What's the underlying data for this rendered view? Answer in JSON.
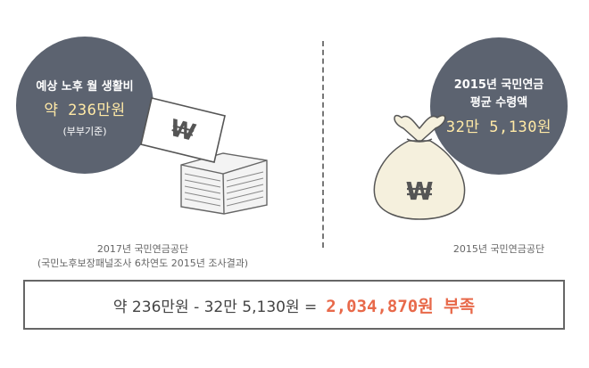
{
  "left": {
    "line1": "예상 노후 월 생활비",
    "amount": "약 236만원",
    "note": "(부부기준)",
    "caption_line1": "2017년 국민연금공단",
    "caption_line2": "(국민노후보장패널조사 6차연도 2015년 조사결과)"
  },
  "right": {
    "line1": "2015년 국민연금",
    "line2": "평균 수령액",
    "amount": "32만 5,130원",
    "caption": "2015년 국민연금공단"
  },
  "summary": {
    "equation": "약 236만원 - 32만 5,130원 =",
    "result": "2,034,870원 부족"
  },
  "icons": {
    "bill": "won-bill-icon",
    "stack": "paper-stack-icon",
    "bag": "money-bag-icon"
  },
  "colors": {
    "circle": "#5c6370",
    "amount": "#ffe9a6",
    "result": "#e8694a",
    "bag": "#f5f0dd"
  }
}
